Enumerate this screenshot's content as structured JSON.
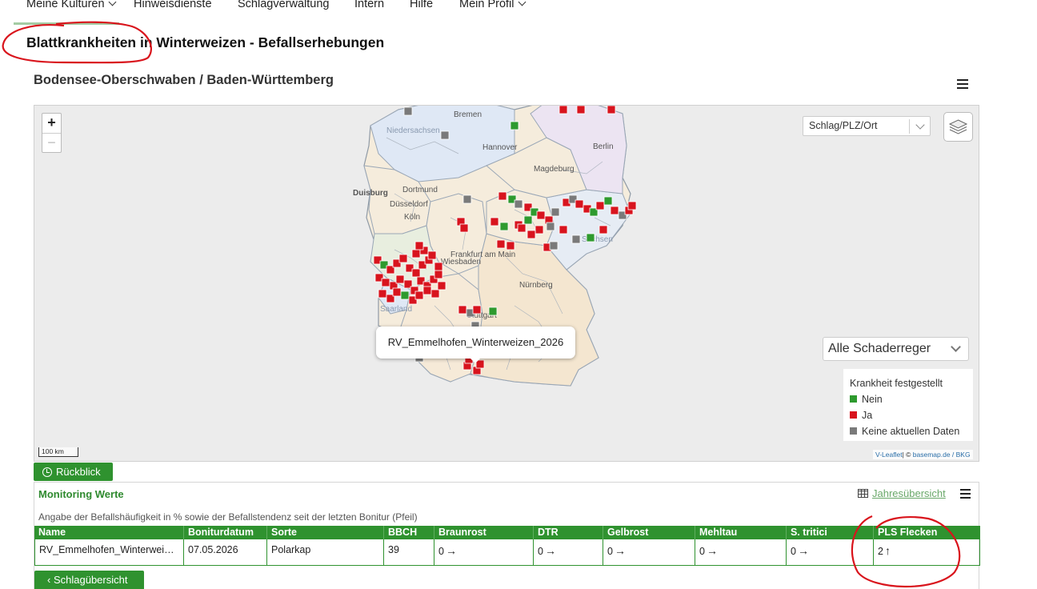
{
  "nav": {
    "items": [
      {
        "label": "Meine Kulturen",
        "dropdown": true
      },
      {
        "label": "Hinweisdienste",
        "dropdown": false
      },
      {
        "label": "Schlagverwaltung",
        "dropdown": false
      },
      {
        "label": "Intern",
        "dropdown": false
      },
      {
        "label": "Hilfe",
        "dropdown": false
      },
      {
        "label": "Mein Profil",
        "dropdown": true
      }
    ]
  },
  "page": {
    "title": "Blattkrankheiten in Winterweizen - Befallserhebungen",
    "region": "Bodensee-Oberschwaben / Baden-Württemberg",
    "menu_icon": "hamburger-icon"
  },
  "map": {
    "zoom_in": "+",
    "zoom_out": "−",
    "search_select": "Schlag/PLZ/Ort",
    "layers_icon": "layers-icon",
    "pest_select": "Alle Schaderreger",
    "legend": {
      "title": "Krankheit festgestellt",
      "items": [
        {
          "label": "Nein",
          "color": "#2e9a2e"
        },
        {
          "label": "Ja",
          "color": "#d8141e"
        },
        {
          "label": "Keine aktuellen Daten",
          "color": "#7a7a7a"
        }
      ]
    },
    "scale": "100 km",
    "attribution_a": "V-Leaflet",
    "attribution_b": "| © ",
    "attribution_c": "basemap.de / BKG",
    "tooltip": "RV_Emmelhofen_Winterweizen_2026",
    "city_labels": [
      "Bremen",
      "Niedersachsen",
      "Hannover",
      "Berlin",
      "Magdeburg",
      "Duisburg",
      "Dortmund",
      "Düsseldorf",
      "Köln",
      "Frankfurt am Main",
      "Wiesbaden",
      "Nürnberg",
      "Saarland",
      "Sachsen",
      "Stuttgart"
    ]
  },
  "review_button": "Rückblick",
  "monitoring": {
    "title": "Monitoring Werte",
    "year_link": "Jahresübersicht",
    "description": "Angabe der Befallshäufigkeit in % sowie der Befallstendenz seit der letzten Bonitur (Pfeil)",
    "columns": [
      "Name",
      "Boniturdatum",
      "Sorte",
      "BBCH",
      "Braunrost",
      "DTR",
      "Gelbrost",
      "Mehltau",
      "S. tritici",
      "PLS Flecken"
    ],
    "row": {
      "name": "RV_Emmelhofen_Winterwei…",
      "date": "07.05.2026",
      "variety": "Polarkap",
      "bbch": "39",
      "braunrost": "0",
      "braunrost_trend": "→",
      "dtr": "0",
      "dtr_trend": "→",
      "gelbrost": "0",
      "gelbrost_trend": "→",
      "mehltau": "0",
      "mehltau_trend": "→",
      "stritici": "0",
      "stritici_trend": "→",
      "pls": "2",
      "pls_trend": "↑"
    }
  },
  "back_button": "Schlagübersicht",
  "colors": {
    "accent": "#2f922f",
    "disease_yes": "#d8141e",
    "disease_no": "#2e9a2e",
    "no_data": "#7a7a7a",
    "annotation": "#d9141c"
  }
}
